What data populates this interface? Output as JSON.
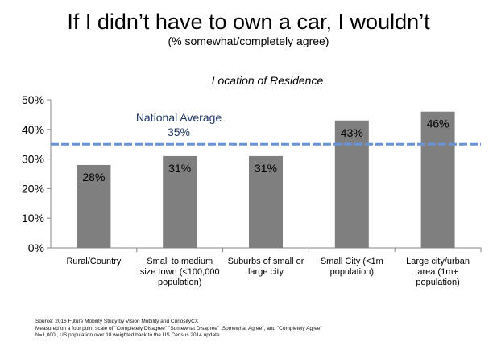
{
  "header": {
    "title": "If I didn’t have to own a car, I wouldn’t",
    "subtitle": "(% somewhat/completely agree)"
  },
  "chart_data": {
    "type": "bar",
    "title": "Location of Residence",
    "categories": [
      [
        "Rural/Country"
      ],
      [
        "Small to medium",
        "size town (<100,000",
        "population)"
      ],
      [
        "Suburbs of small or",
        "large city"
      ],
      [
        "Small City  (<1m",
        "population)"
      ],
      [
        "Large city/urban",
        "area (1m+",
        "population)"
      ]
    ],
    "values": [
      28,
      31,
      31,
      43,
      46
    ],
    "value_labels": [
      "28%",
      "31%",
      "31%",
      "43%",
      "46%"
    ],
    "ylim": [
      0,
      50
    ],
    "yticks": [
      0,
      10,
      20,
      30,
      40,
      50
    ],
    "ytick_labels": [
      "0%",
      "10%",
      "20%",
      "30%",
      "40%",
      "50%"
    ],
    "bar_color": "#7f7f7f",
    "reference_line": {
      "value": 35,
      "label": "National Average",
      "value_label": "35%",
      "color": "#6a93d6",
      "label_color": "#1f3864"
    }
  },
  "footnotes": [
    "Source: 2016  Future Mobility Study by Vision Mobility and CuriosityCX",
    "Measured on a four point scale of \"Completely Disagree\" \"Somewhat Disagree\" :Somewhat Agree\", and \"Completely Agree\"",
    "N=1,000 , US population over 18 weighted back to the US Census 2014 update"
  ]
}
